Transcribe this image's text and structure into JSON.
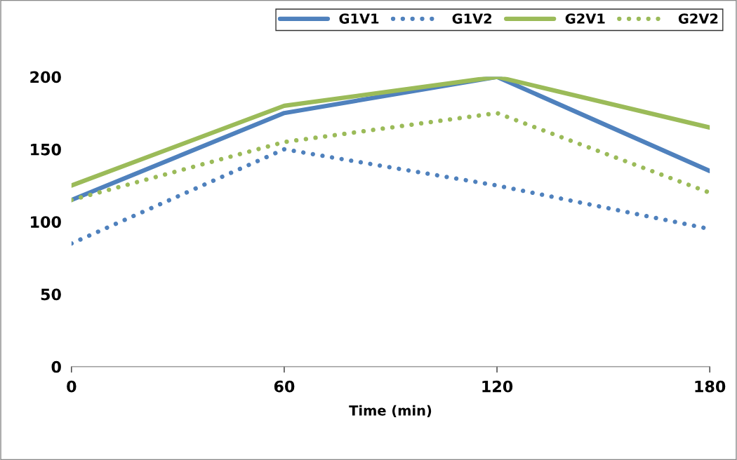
{
  "chart_data": {
    "type": "line",
    "xlabel": "Time (min)",
    "x": [
      0,
      60,
      120,
      180
    ],
    "series": [
      {
        "name": "G1V1",
        "color": "#4f81bd",
        "line_style": "solid",
        "values": [
          115,
          175,
          200,
          135
        ]
      },
      {
        "name": "G1V2",
        "color": "#4f81bd",
        "line_style": "dotted",
        "values": [
          85,
          150,
          125,
          95
        ]
      },
      {
        "name": "G2V1",
        "color": "#9bbb59",
        "line_style": "solid",
        "values": [
          125,
          180,
          200,
          165
        ]
      },
      {
        "name": "G2V2",
        "color": "#9bbb59",
        "line_style": "dotted",
        "values": [
          115,
          155,
          175,
          120
        ]
      }
    ],
    "xlim": [
      0,
      180
    ],
    "xticks": [
      0,
      60,
      120,
      180
    ],
    "ylim": [
      0,
      200
    ],
    "yticks": [
      0,
      50,
      100,
      150,
      200
    ],
    "grid": false,
    "legend": "top right",
    "marker": "none"
  }
}
